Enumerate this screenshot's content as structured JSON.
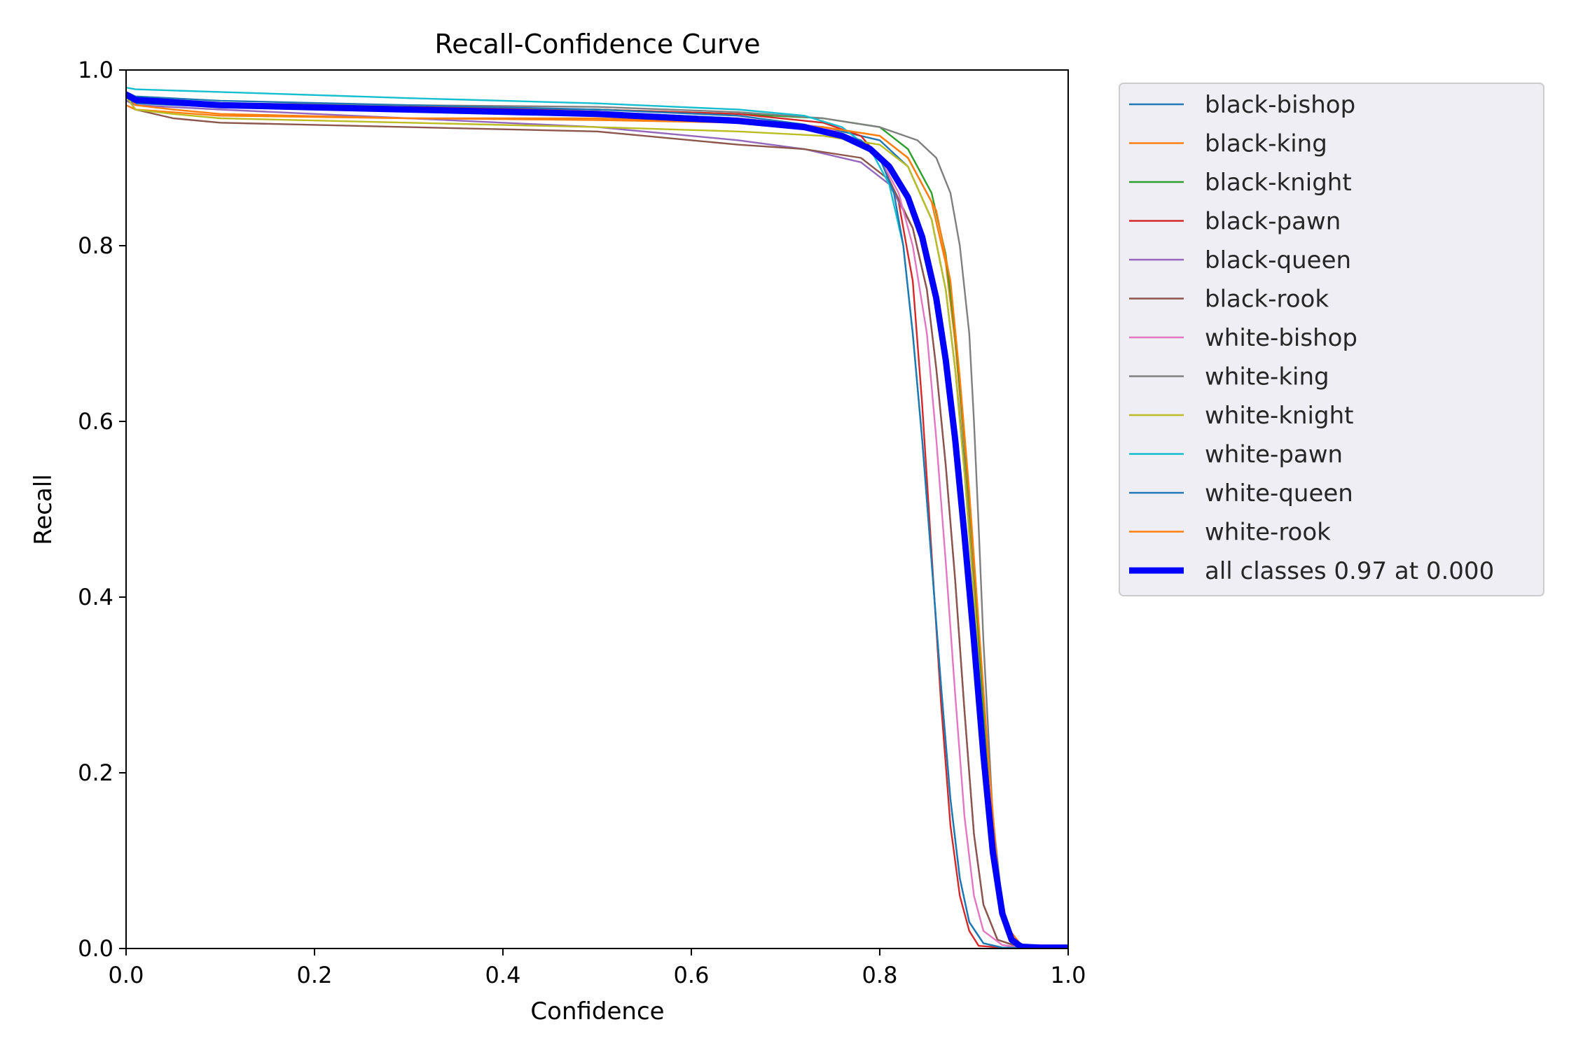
{
  "chart_data": {
    "type": "line",
    "title": "Recall-Confidence Curve",
    "xlabel": "Confidence",
    "ylabel": "Recall",
    "xlim": [
      0,
      1
    ],
    "ylim": [
      0,
      1
    ],
    "xticks": [
      "0.0",
      "0.2",
      "0.4",
      "0.6",
      "0.8",
      "1.0"
    ],
    "yticks": [
      "0.0",
      "0.2",
      "0.4",
      "0.6",
      "0.8",
      "1.0"
    ],
    "grid": false,
    "legend_position": "outside-right-top",
    "series": [
      {
        "name": "black-bishop",
        "color": "#1f77b4",
        "x": [
          0,
          0.01,
          0.1,
          0.3,
          0.5,
          0.65,
          0.74,
          0.8,
          0.83,
          0.855,
          0.87,
          0.88,
          0.89,
          0.9,
          0.91,
          0.92,
          0.93,
          0.94,
          0.96,
          1.0
        ],
        "y": [
          0.965,
          0.962,
          0.958,
          0.955,
          0.952,
          0.945,
          0.935,
          0.92,
          0.89,
          0.83,
          0.75,
          0.66,
          0.55,
          0.42,
          0.26,
          0.12,
          0.04,
          0.005,
          0.001,
          0.001
        ]
      },
      {
        "name": "black-king",
        "color": "#ff7f0e",
        "x": [
          0,
          0.01,
          0.1,
          0.3,
          0.5,
          0.65,
          0.74,
          0.8,
          0.83,
          0.855,
          0.87,
          0.88,
          0.89,
          0.9,
          0.91,
          0.92,
          0.93,
          0.94,
          0.96,
          1.0
        ],
        "y": [
          0.96,
          0.955,
          0.948,
          0.945,
          0.945,
          0.94,
          0.935,
          0.925,
          0.9,
          0.85,
          0.78,
          0.69,
          0.57,
          0.43,
          0.27,
          0.12,
          0.04,
          0.005,
          0.001,
          0.001
        ]
      },
      {
        "name": "black-knight",
        "color": "#2ca02c",
        "x": [
          0,
          0.01,
          0.1,
          0.3,
          0.5,
          0.65,
          0.74,
          0.8,
          0.83,
          0.855,
          0.87,
          0.88,
          0.89,
          0.9,
          0.91,
          0.92,
          0.93,
          0.94,
          0.96,
          1.0
        ],
        "y": [
          0.97,
          0.965,
          0.96,
          0.958,
          0.955,
          0.95,
          0.945,
          0.935,
          0.91,
          0.86,
          0.79,
          0.7,
          0.58,
          0.44,
          0.27,
          0.12,
          0.04,
          0.005,
          0.001,
          0.001
        ]
      },
      {
        "name": "black-pawn",
        "color": "#d62728",
        "x": [
          0,
          0.01,
          0.1,
          0.3,
          0.5,
          0.65,
          0.74,
          0.78,
          0.8,
          0.82,
          0.835,
          0.845,
          0.855,
          0.865,
          0.875,
          0.885,
          0.895,
          0.905,
          0.93,
          1.0
        ],
        "y": [
          0.97,
          0.965,
          0.96,
          0.958,
          0.955,
          0.95,
          0.94,
          0.925,
          0.9,
          0.85,
          0.76,
          0.62,
          0.45,
          0.28,
          0.14,
          0.06,
          0.02,
          0.003,
          0.001,
          0.001
        ]
      },
      {
        "name": "black-queen",
        "color": "#9467bd",
        "x": [
          0,
          0.01,
          0.1,
          0.3,
          0.5,
          0.65,
          0.72,
          0.78,
          0.81,
          0.835,
          0.85,
          0.86,
          0.87,
          0.88,
          0.89,
          0.9,
          0.91,
          0.925,
          0.95,
          1.0
        ],
        "y": [
          0.965,
          0.96,
          0.955,
          0.945,
          0.935,
          0.92,
          0.91,
          0.895,
          0.87,
          0.82,
          0.75,
          0.66,
          0.55,
          0.42,
          0.27,
          0.13,
          0.05,
          0.01,
          0.001,
          0.001
        ]
      },
      {
        "name": "black-rook",
        "color": "#8c564b",
        "x": [
          0,
          0.01,
          0.05,
          0.1,
          0.3,
          0.5,
          0.65,
          0.72,
          0.78,
          0.81,
          0.835,
          0.85,
          0.86,
          0.87,
          0.88,
          0.89,
          0.9,
          0.91,
          0.925,
          0.95,
          1.0
        ],
        "y": [
          0.97,
          0.955,
          0.945,
          0.94,
          0.935,
          0.93,
          0.915,
          0.91,
          0.9,
          0.875,
          0.82,
          0.75,
          0.66,
          0.55,
          0.42,
          0.27,
          0.13,
          0.05,
          0.01,
          0.001,
          0.001
        ]
      },
      {
        "name": "white-bishop",
        "color": "#e377c2",
        "x": [
          0,
          0.01,
          0.1,
          0.3,
          0.5,
          0.65,
          0.74,
          0.78,
          0.8,
          0.82,
          0.835,
          0.85,
          0.86,
          0.87,
          0.88,
          0.89,
          0.9,
          0.91,
          0.93,
          0.95,
          1.0
        ],
        "y": [
          0.97,
          0.965,
          0.96,
          0.955,
          0.95,
          0.945,
          0.935,
          0.92,
          0.9,
          0.86,
          0.8,
          0.7,
          0.58,
          0.44,
          0.29,
          0.15,
          0.06,
          0.02,
          0.004,
          0.001,
          0.001
        ]
      },
      {
        "name": "white-king",
        "color": "#7f7f7f",
        "x": [
          0,
          0.01,
          0.1,
          0.3,
          0.5,
          0.65,
          0.74,
          0.8,
          0.84,
          0.86,
          0.875,
          0.885,
          0.895,
          0.9,
          0.905,
          0.91,
          0.92,
          0.93,
          0.94,
          0.96,
          1.0
        ],
        "y": [
          0.97,
          0.965,
          0.962,
          0.96,
          0.958,
          0.952,
          0.945,
          0.935,
          0.92,
          0.9,
          0.86,
          0.8,
          0.7,
          0.6,
          0.48,
          0.35,
          0.15,
          0.05,
          0.01,
          0.001,
          0.001
        ]
      },
      {
        "name": "white-knight",
        "color": "#bcbd22",
        "x": [
          0,
          0.01,
          0.05,
          0.1,
          0.3,
          0.5,
          0.65,
          0.74,
          0.8,
          0.83,
          0.855,
          0.87,
          0.88,
          0.89,
          0.9,
          0.91,
          0.92,
          0.93,
          0.945,
          0.96,
          1.0
        ],
        "y": [
          0.97,
          0.955,
          0.95,
          0.945,
          0.94,
          0.935,
          0.93,
          0.925,
          0.915,
          0.89,
          0.83,
          0.75,
          0.66,
          0.54,
          0.4,
          0.25,
          0.11,
          0.035,
          0.005,
          0.001,
          0.001
        ]
      },
      {
        "name": "white-pawn",
        "color": "#17becf",
        "x": [
          0,
          0.01,
          0.1,
          0.3,
          0.5,
          0.65,
          0.72,
          0.76,
          0.79,
          0.81,
          0.825,
          0.835,
          0.845,
          0.855,
          0.865,
          0.875,
          0.885,
          0.895,
          0.91,
          0.93,
          1.0
        ],
        "y": [
          0.98,
          0.978,
          0.975,
          0.968,
          0.962,
          0.955,
          0.948,
          0.935,
          0.91,
          0.87,
          0.8,
          0.7,
          0.58,
          0.44,
          0.3,
          0.17,
          0.08,
          0.03,
          0.006,
          0.001,
          0.001
        ]
      },
      {
        "name": "white-queen",
        "color": "#1f77b4",
        "x": [
          0,
          0.01,
          0.1,
          0.3,
          0.5,
          0.65,
          0.72,
          0.78,
          0.8,
          0.815,
          0.825,
          0.835,
          0.845,
          0.855,
          0.865,
          0.875,
          0.885,
          0.895,
          0.91,
          0.93,
          1.0
        ],
        "y": [
          0.975,
          0.97,
          0.965,
          0.96,
          0.955,
          0.948,
          0.938,
          0.92,
          0.9,
          0.86,
          0.8,
          0.7,
          0.58,
          0.44,
          0.3,
          0.17,
          0.08,
          0.03,
          0.006,
          0.001,
          0.001
        ]
      },
      {
        "name": "white-rook",
        "color": "#ff7f0e",
        "x": [
          0,
          0.01,
          0.05,
          0.1,
          0.3,
          0.5,
          0.65,
          0.74,
          0.8,
          0.83,
          0.86,
          0.875,
          0.885,
          0.895,
          0.905,
          0.915,
          0.925,
          0.935,
          0.95,
          0.97,
          1.0
        ],
        "y": [
          0.975,
          0.96,
          0.955,
          0.95,
          0.945,
          0.943,
          0.94,
          0.935,
          0.925,
          0.9,
          0.84,
          0.76,
          0.65,
          0.52,
          0.37,
          0.22,
          0.09,
          0.025,
          0.004,
          0.001,
          0.001
        ]
      },
      {
        "name": "all classes 0.97 at 0.000",
        "color": "#0000ff",
        "bold": true,
        "x": [
          0,
          0.01,
          0.1,
          0.3,
          0.5,
          0.65,
          0.72,
          0.76,
          0.79,
          0.81,
          0.83,
          0.845,
          0.86,
          0.87,
          0.88,
          0.89,
          0.9,
          0.91,
          0.92,
          0.93,
          0.94,
          0.95,
          0.97,
          1.0
        ],
        "y": [
          0.972,
          0.966,
          0.96,
          0.955,
          0.95,
          0.942,
          0.935,
          0.925,
          0.91,
          0.89,
          0.855,
          0.81,
          0.74,
          0.67,
          0.58,
          0.47,
          0.35,
          0.22,
          0.11,
          0.04,
          0.01,
          0.002,
          0.001,
          0.001
        ]
      }
    ]
  }
}
